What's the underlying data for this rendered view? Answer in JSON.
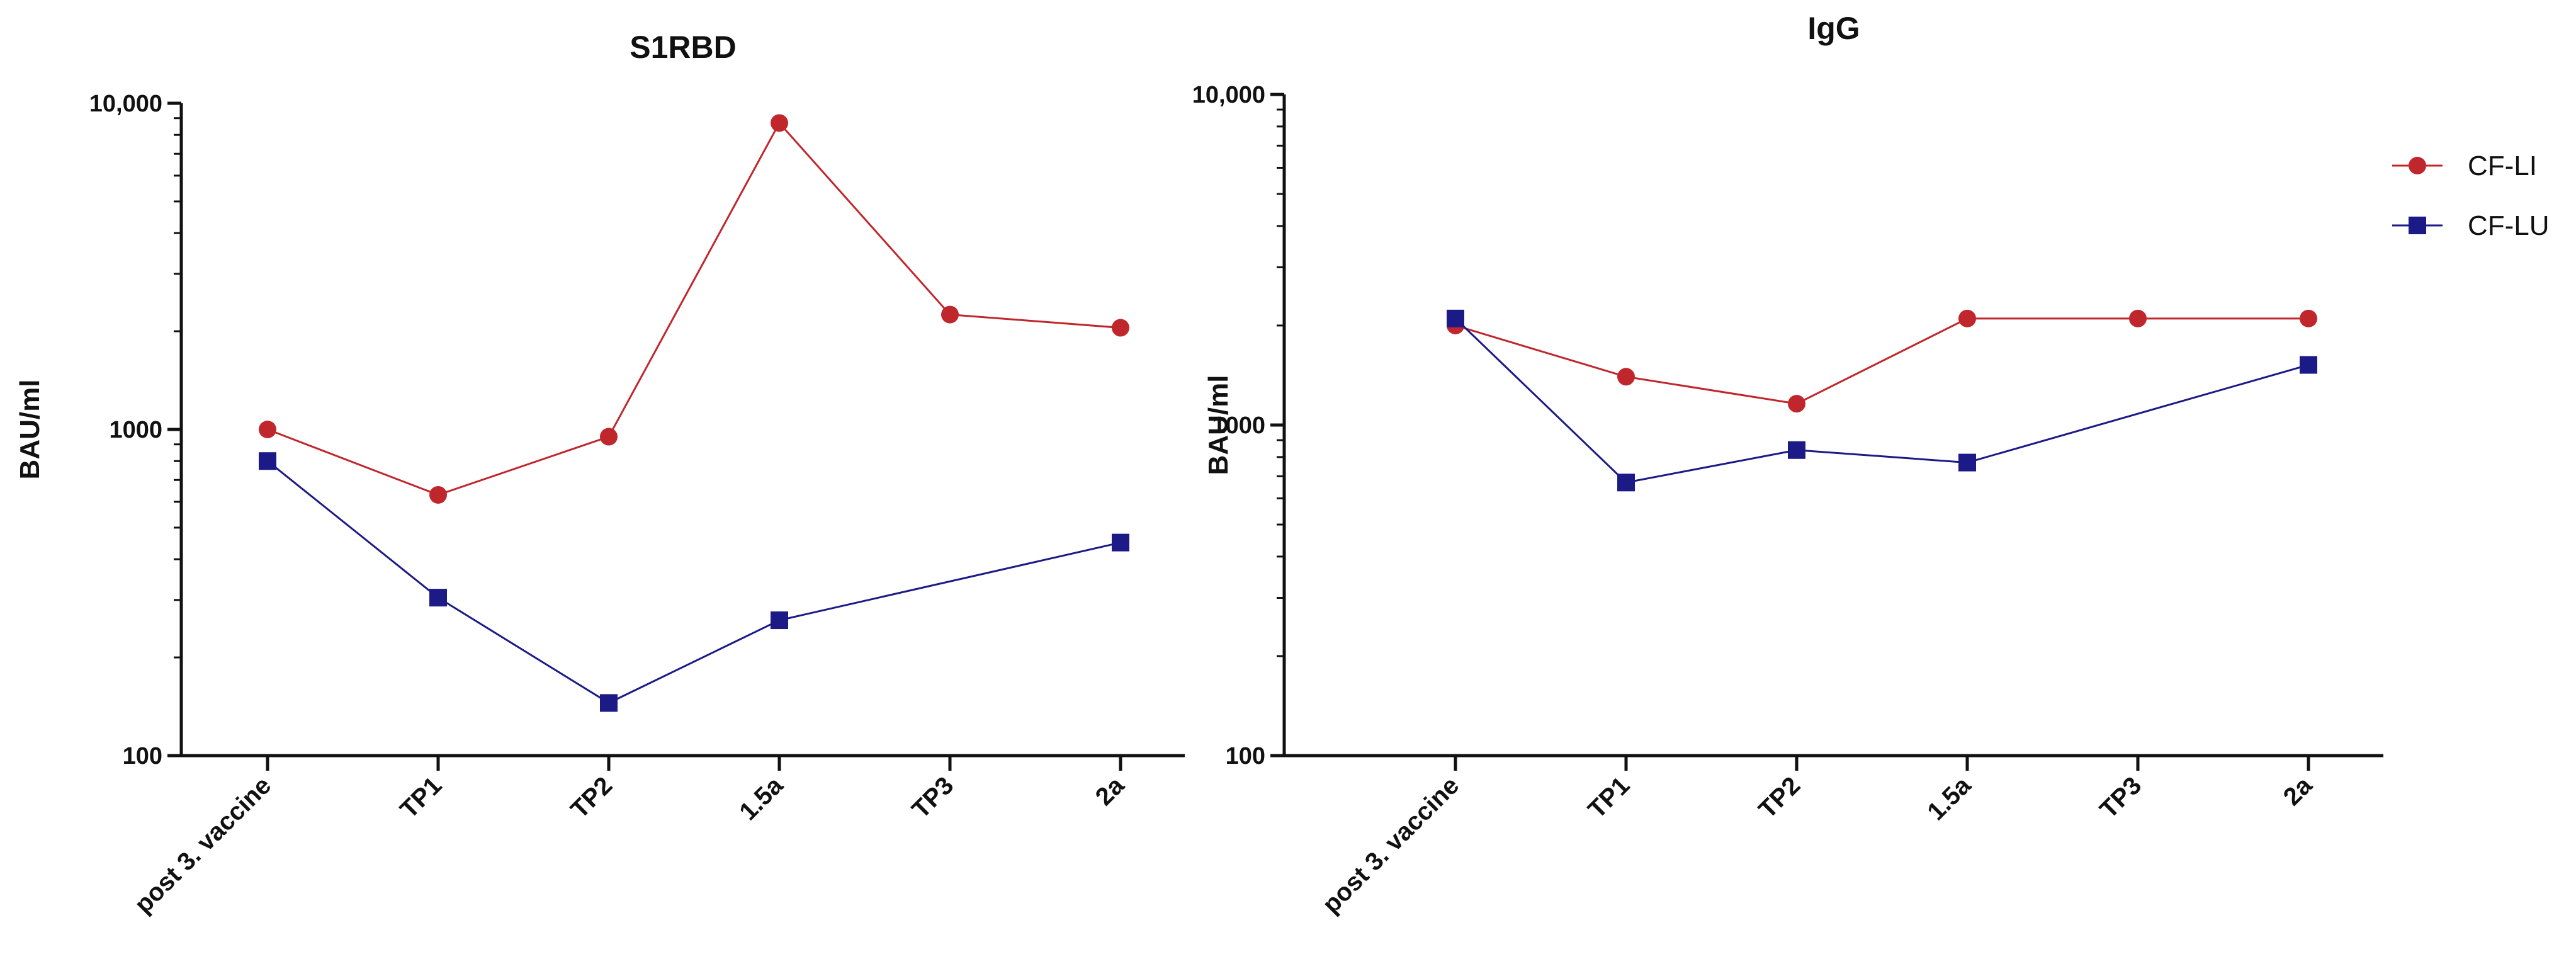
{
  "chart_data": [
    {
      "type": "line",
      "title": "S1RBD",
      "ylabel": "BAU/ml",
      "xlabel": "",
      "yscale": "log",
      "ylim": [
        100,
        10000
      ],
      "yticks": [
        100,
        1000,
        10000
      ],
      "ytick_labels": [
        "100",
        "1000",
        "10,000"
      ],
      "categories": [
        "post 3. vaccine",
        "TP1",
        "TP2",
        "1.5a",
        "TP3",
        "2a"
      ],
      "series": [
        {
          "name": "CF-LI",
          "color": "#c0272d",
          "marker": "circle",
          "values": [
            1000,
            630,
            950,
            8700,
            2250,
            2050
          ]
        },
        {
          "name": "CF-LU",
          "color": "#1c1a86",
          "marker": "square",
          "values": [
            800,
            305,
            145,
            260,
            null,
            450
          ]
        }
      ]
    },
    {
      "type": "line",
      "title": "IgG",
      "ylabel": "BAU/ml",
      "xlabel": "",
      "yscale": "log",
      "ylim": [
        100,
        10000
      ],
      "yticks": [
        100,
        1000,
        10000
      ],
      "ytick_labels": [
        "100",
        "1000",
        "10,000"
      ],
      "categories": [
        "post 3. vaccine",
        "TP1",
        "TP2",
        "1.5a",
        "TP3",
        "2a"
      ],
      "series": [
        {
          "name": "CF-LI",
          "color": "#c0272d",
          "marker": "circle",
          "values": [
            2000,
            1400,
            1160,
            2100,
            2100,
            2100
          ]
        },
        {
          "name": "CF-LU",
          "color": "#1c1a86",
          "marker": "square",
          "values": [
            2100,
            670,
            840,
            770,
            null,
            1520
          ]
        }
      ]
    }
  ],
  "legend": {
    "items": [
      {
        "label": "CF-LI",
        "color": "#c0272d",
        "marker": "circle"
      },
      {
        "label": "CF-LU",
        "color": "#1c1a86",
        "marker": "square"
      }
    ]
  }
}
